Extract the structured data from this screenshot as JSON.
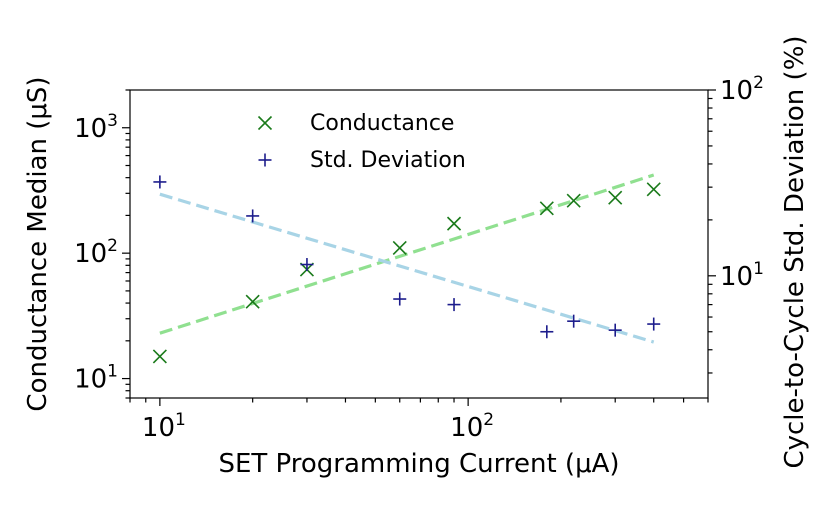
{
  "chart_data": {
    "type": "scatter",
    "xlabel": "SET Programming Current (μA)",
    "ylabel_left": "Conductance Median (μS)",
    "ylabel_right": "Cycle-to-Cycle Std. Deviation (%)",
    "x_scale": "log",
    "y_left_scale": "log",
    "y_right_scale": "log",
    "xlim": [
      8,
      600
    ],
    "ylim_left": [
      7,
      2000
    ],
    "ylim_right": [
      2.2,
      100
    ],
    "grid": false,
    "legend_position": "top-left",
    "x_ticks": [
      {
        "base": "10",
        "exp": "1",
        "value": 10
      },
      {
        "base": "10",
        "exp": "2",
        "value": 100
      }
    ],
    "y_left_ticks": [
      {
        "base": "10",
        "exp": "1",
        "value": 10
      },
      {
        "base": "10",
        "exp": "2",
        "value": 100
      },
      {
        "base": "10",
        "exp": "3",
        "value": 1000
      }
    ],
    "y_right_ticks": [
      {
        "base": "10",
        "exp": "1",
        "value": 10
      },
      {
        "base": "10",
        "exp": "2",
        "value": 100
      }
    ],
    "series": [
      {
        "name": "Conductance",
        "axis": "left",
        "marker": "x",
        "color": "#1a7a1a",
        "x": [
          10,
          20,
          30,
          60,
          90,
          180,
          220,
          300,
          400
        ],
        "y": [
          15,
          41,
          74,
          110,
          172,
          228,
          262,
          277,
          323
        ],
        "fit": {
          "x": [
            10,
            400
          ],
          "y": [
            23,
            420
          ],
          "color": "#90e090"
        }
      },
      {
        "name": "Std. Deviation",
        "axis": "right",
        "marker": "+",
        "color": "#1c1c8c",
        "x": [
          10,
          20,
          30,
          60,
          90,
          180,
          220,
          300,
          400
        ],
        "y": [
          32,
          21,
          11.5,
          7.5,
          7,
          5,
          5.7,
          5.1,
          5.5
        ],
        "fit": {
          "x": [
            10,
            400
          ],
          "y": [
            27.5,
            4.4
          ],
          "color": "#a8d4e6"
        }
      }
    ]
  }
}
